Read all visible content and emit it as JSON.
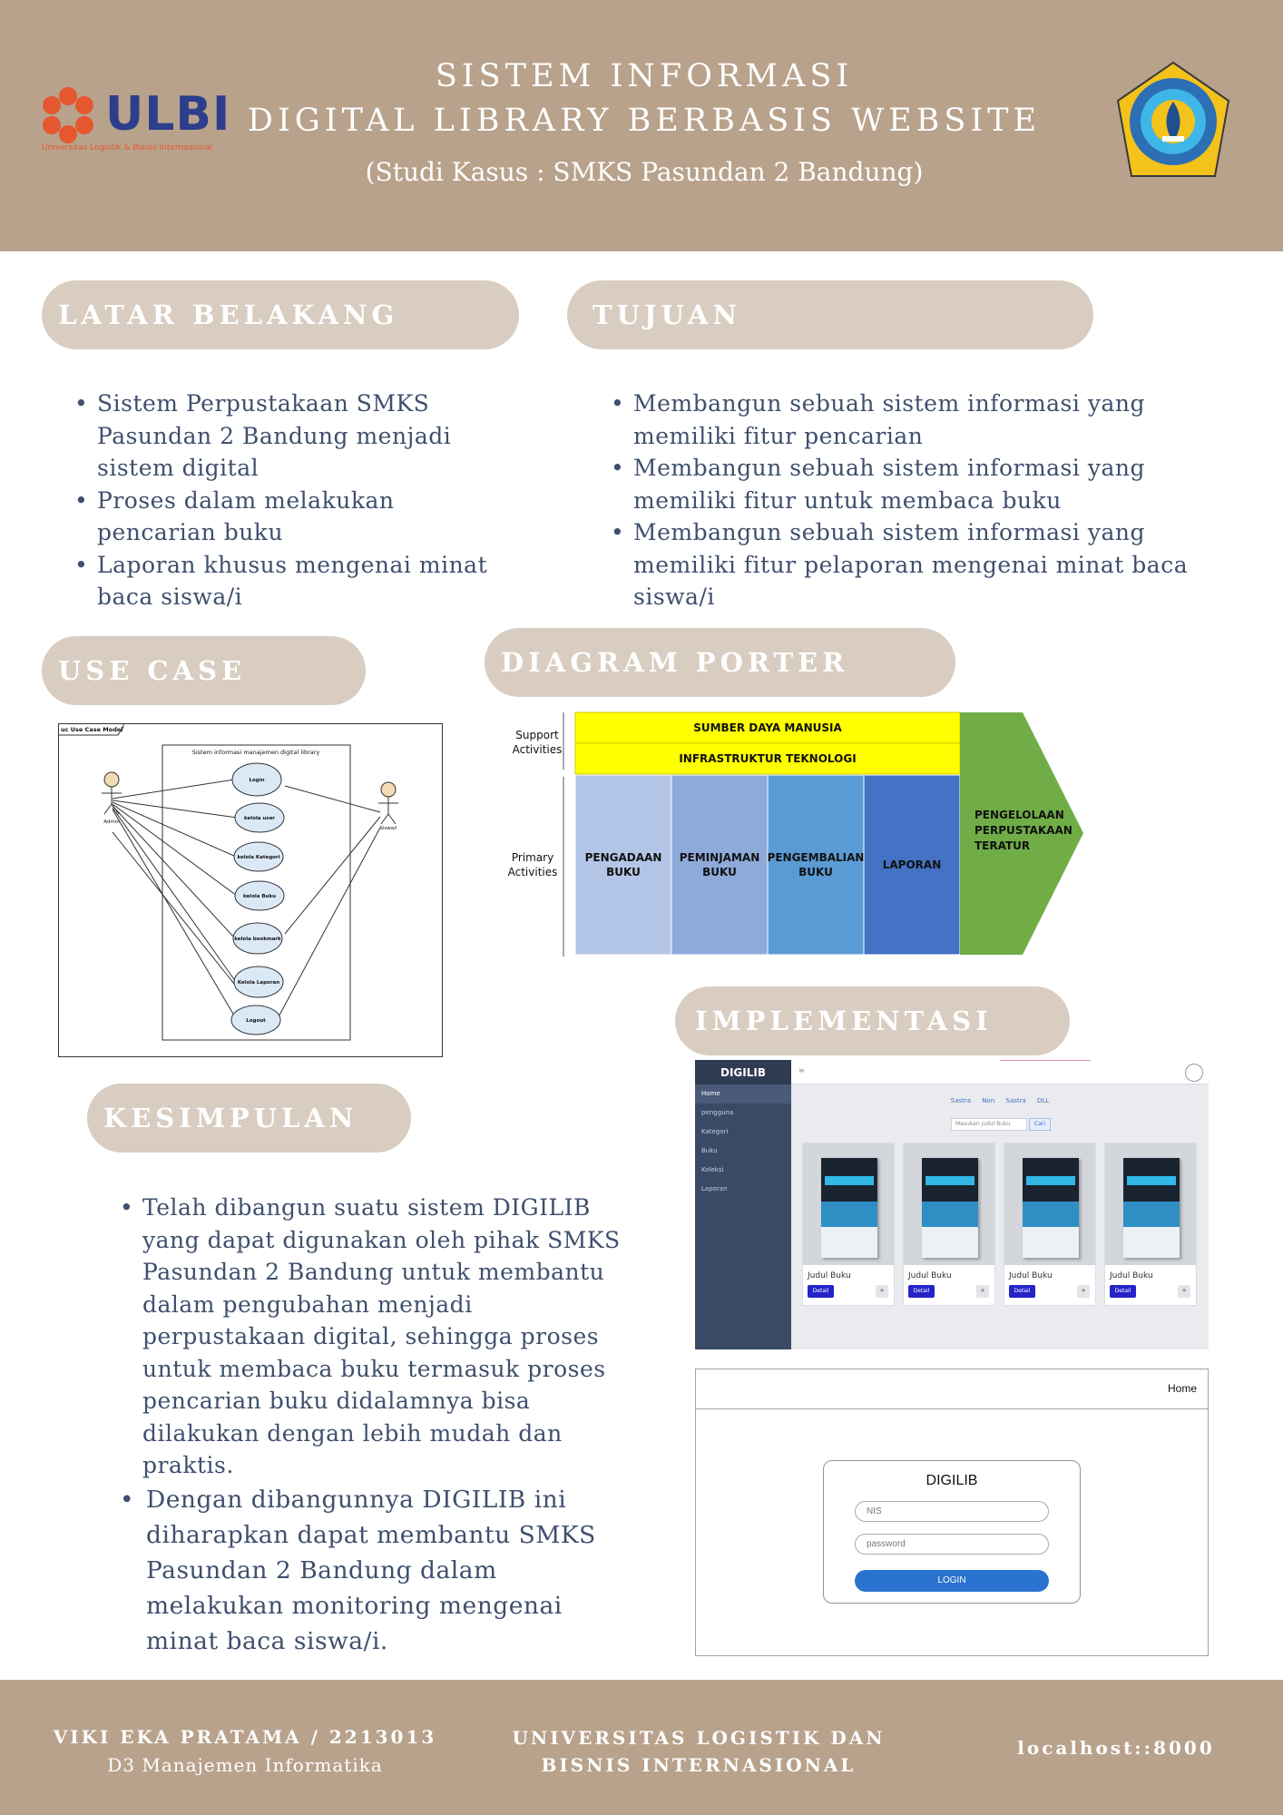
{
  "header": {
    "logo_left": {
      "name": "ULBI",
      "tagline": "Universitas Logistik & Bisnis Internasional"
    },
    "title_line1": "SISTEM INFORMASI",
    "title_line2": "DIGITAL LIBRARY BERBASIS WEBSITE",
    "subtitle": "(Studi Kasus : SMKS Pasundan 2 Bandung)",
    "logo_right": {
      "icon": "smk-seal-logo"
    }
  },
  "latar_belakang": {
    "heading": "LATAR BELAKANG",
    "items": [
      "Sistem Perpustakaan SMKS Pasundan 2 Bandung menjadi sistem digital",
      "Proses dalam melakukan pencarian buku",
      "Laporan khusus mengenai minat baca siswa/i"
    ]
  },
  "tujuan": {
    "heading": "TUJUAN",
    "items": [
      "Membangun sebuah sistem informasi yang memiliki fitur pencarian",
      "Membangun sebuah sistem informasi yang memiliki fitur untuk membaca buku",
      "Membangun sebuah sistem informasi yang memiliki fitur pelaporan mengenai minat baca siswa/i"
    ]
  },
  "use_case": {
    "heading": "USE CASE",
    "frame_label": "uc Use Case Model",
    "system_label": "Sistem informasi manajemen digital library",
    "actors": [
      "Admin",
      "Siswa/i"
    ],
    "cases": [
      "Login",
      "kelola user",
      "kelola Kategori",
      "kelola Buku",
      "kelola bookmark",
      "Kelola Laporan",
      "Logout"
    ]
  },
  "diagram_porter": {
    "heading": "DIAGRAM PORTER",
    "support_label": [
      "Support",
      "Activities"
    ],
    "primary_label": [
      "Primary",
      "Activities"
    ],
    "support": [
      "SUMBER DAYA MANUSIA",
      "INFRASTRUKTUR TEKNOLOGI"
    ],
    "primary": [
      {
        "lines": [
          "PENGADAAN",
          "BUKU"
        ],
        "color": "#b4c6e7"
      },
      {
        "lines": [
          "PEMINJAMAN",
          "BUKU"
        ],
        "color": "#8eaadb"
      },
      {
        "lines": [
          "PENGEMBALIAN",
          "BUKU"
        ],
        "color": "#5b9bd5"
      },
      {
        "lines": [
          "LAPORAN"
        ],
        "color": "#4472c4"
      }
    ],
    "margin": [
      "PENGELOLAAN",
      "PERPUSTAKAAN",
      "TERATUR"
    ],
    "colors": {
      "support": "#ffff00",
      "margin": "#70ad47"
    }
  },
  "implementasi": {
    "heading": "IMPLEMENTASI",
    "app": {
      "brand": "DIGILIB",
      "menu_icon": "hamburger-icon",
      "nav": [
        "Home",
        "pengguna",
        "Kategori",
        "Buku",
        "Koleksi",
        "Laporan"
      ],
      "categories": "Sastra Non Sastra DLL",
      "search_placeholder": "Masukan judul Buku",
      "search_button": "Cari",
      "books": [
        {
          "title": "Judul Buku",
          "detail": "Detail",
          "plus": "+"
        },
        {
          "title": "Judul Buku",
          "detail": "Detail",
          "plus": "+"
        },
        {
          "title": "Judul Buku",
          "detail": "Detail",
          "plus": "+"
        },
        {
          "title": "Judul Buku",
          "detail": "Detail",
          "plus": "+"
        }
      ]
    },
    "login": {
      "nav_home": "Home",
      "title": "DIGILIB",
      "nis_placeholder": "NIS",
      "password_placeholder": "password",
      "button": "LOGIN"
    }
  },
  "kesimpulan": {
    "heading": "KESIMPULAN",
    "items": [
      "Telah dibangun suatu sistem DIGILIB yang dapat digunakan oleh pihak SMKS Pasundan 2 Bandung untuk membantu dalam pengubahan menjadi perpustakaan digital, sehingga proses untuk membaca buku termasuk proses pencarian buku didalamnya bisa dilakukan dengan lebih mudah dan praktis.",
      "Dengan dibangunnya DIGILIB ini diharapkan dapat membantu SMKS Pasundan 2 Bandung dalam melakukan monitoring mengenai minat baca siswa/i."
    ]
  },
  "footer": {
    "author": "VIKI EKA PRATAMA / 2213013",
    "program": "D3 Manajemen Informatika",
    "university_line1": "UNIVERSITAS LOGISTIK DAN",
    "university_line2": "BISNIS INTERNASIONAL",
    "url": "localhost::8000"
  }
}
